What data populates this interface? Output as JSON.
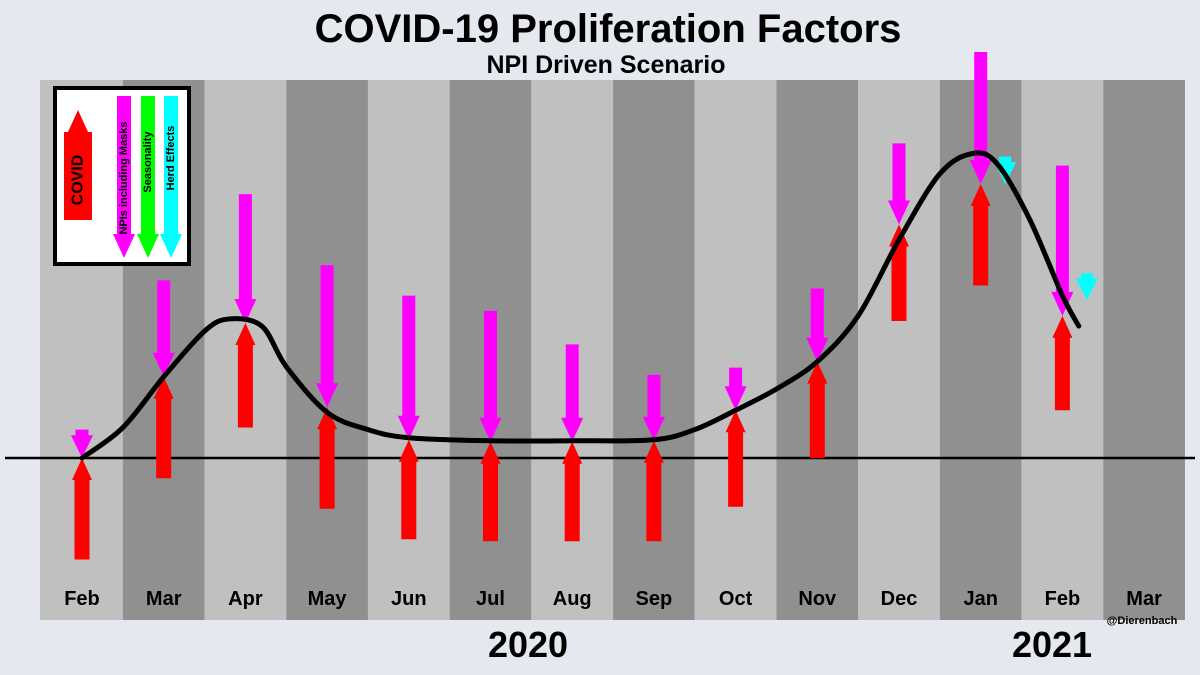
{
  "chart_data": {
    "type": "line",
    "title": "COVID-19 Proliferation Factors",
    "subtitle": "NPI Driven Scenario",
    "months": [
      "Feb",
      "Mar",
      "Apr",
      "May",
      "Jun",
      "Jul",
      "Aug",
      "Sep",
      "Oct",
      "Nov",
      "Dec",
      "Jan",
      "Feb",
      "Mar"
    ],
    "years": [
      "2020",
      "2021"
    ],
    "credit": "@Dierenbach",
    "legend": [
      "COVID",
      "NPIs including Masks",
      "Seasonality",
      "Herd Effects"
    ],
    "colors": {
      "covid": "#ff0000",
      "npi": "#ff00ff",
      "seasonality": "#00ff00",
      "herd": "#00ffff",
      "band_light": "#c0c0c0",
      "band_dark": "#909090",
      "background": "#e6e8f0"
    },
    "ylim": [
      -10,
      36
    ],
    "curve": {
      "x": [
        0.0,
        0.5,
        1.0,
        1.5,
        1.8,
        2.2,
        2.5,
        3.0,
        3.5,
        4.0,
        5.0,
        6.0,
        7.0,
        7.5,
        8.0,
        8.5,
        9.0,
        9.5,
        10.0,
        10.5,
        10.9,
        11.2,
        11.6,
        12.0,
        12.2
      ],
      "y": [
        0.0,
        3.0,
        8.0,
        12.5,
        13.7,
        13.0,
        9.0,
        4.5,
        2.8,
        2.0,
        1.7,
        1.7,
        1.8,
        2.8,
        4.7,
        6.8,
        9.5,
        14.0,
        21.5,
        28.0,
        30.0,
        29.0,
        23.5,
        16.0,
        13.0
      ]
    },
    "factors": [
      {
        "month": "Feb",
        "x": 0.0,
        "covid": [
          -10.0,
          0.0
        ],
        "npi": [
          2.8,
          0.0
        ]
      },
      {
        "month": "Mar",
        "x": 1.0,
        "covid": [
          -2.0,
          8.0
        ],
        "npi": [
          17.5,
          8.0
        ]
      },
      {
        "month": "Apr",
        "x": 2.0,
        "covid": [
          3.0,
          13.3
        ],
        "npi": [
          26.0,
          13.3
        ]
      },
      {
        "month": "May",
        "x": 3.0,
        "covid": [
          -5.0,
          5.0
        ],
        "npi": [
          19.0,
          5.0
        ]
      },
      {
        "month": "Jun",
        "x": 4.0,
        "covid": [
          -8.0,
          1.8
        ],
        "npi": [
          16.0,
          1.8
        ]
      },
      {
        "month": "Jul",
        "x": 5.0,
        "covid": [
          -8.2,
          1.6
        ],
        "npi": [
          14.5,
          1.6
        ]
      },
      {
        "month": "Aug",
        "x": 6.0,
        "covid": [
          -8.2,
          1.6
        ],
        "npi": [
          11.2,
          1.6
        ]
      },
      {
        "month": "Sep",
        "x": 7.0,
        "covid": [
          -8.2,
          1.7
        ],
        "npi": [
          8.2,
          1.7
        ]
      },
      {
        "month": "Oct",
        "x": 8.0,
        "covid": [
          -4.8,
          4.7
        ],
        "npi": [
          8.9,
          4.7
        ]
      },
      {
        "month": "Nov",
        "x": 9.0,
        "covid": [
          0.0,
          9.5
        ],
        "npi": [
          16.7,
          9.5
        ]
      },
      {
        "month": "Dec",
        "x": 10.0,
        "covid": [
          13.5,
          23.0
        ],
        "npi": [
          31.0,
          23.0
        ]
      },
      {
        "month": "Jan",
        "x": 11.0,
        "covid": [
          17.0,
          27.0
        ],
        "npi": [
          40.0,
          27.0
        ],
        "herd": [
          29.7,
          27.0
        ],
        "herd_dx": 0.3
      },
      {
        "month": "Feb",
        "x": 12.0,
        "covid": [
          4.7,
          14.0
        ],
        "npi": [
          28.8,
          14.0
        ],
        "herd": [
          18.2,
          15.6
        ],
        "herd_dx": 0.3
      }
    ]
  }
}
